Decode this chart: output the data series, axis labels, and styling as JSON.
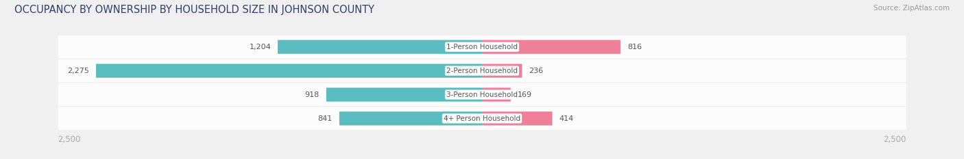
{
  "title": "OCCUPANCY BY OWNERSHIP BY HOUSEHOLD SIZE IN JOHNSON COUNTY",
  "source": "Source: ZipAtlas.com",
  "categories": [
    "1-Person Household",
    "2-Person Household",
    "3-Person Household",
    "4+ Person Household"
  ],
  "owner_values": [
    1204,
    2275,
    918,
    841
  ],
  "renter_values": [
    816,
    236,
    169,
    414
  ],
  "owner_color": "#5bbcbf",
  "renter_color": "#f08098",
  "bg_color": "#f0f0f0",
  "row_bg_light": "#f8f8f8",
  "row_bg_dark": "#ebebeb",
  "axis_max": 2500,
  "title_fontsize": 10.5,
  "source_fontsize": 7.5,
  "value_fontsize": 8,
  "cat_fontsize": 7.5,
  "tick_fontsize": 8.5,
  "legend_fontsize": 8.5,
  "title_color": "#2c3e6b",
  "source_color": "#999999",
  "value_color": "#555555",
  "cat_label_color": "#555555",
  "tick_color": "#aaaaaa",
  "legend_text_color": "#555555"
}
